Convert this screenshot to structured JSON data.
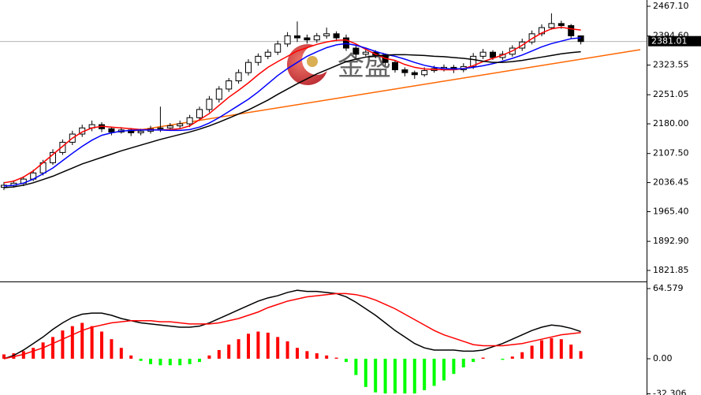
{
  "chart_data": [
    {
      "type": "candlestick",
      "watermark": "金盛",
      "ylim": [
        1794.9,
        2482.5
      ],
      "yticks": [
        {
          "value": 2467.1,
          "label": "2467.10"
        },
        {
          "value": 2394.6,
          "label": "2394.60"
        },
        2323.55,
        2251.05,
        {
          "value": 2180,
          "label": "2180.00"
        },
        {
          "value": 2107.5,
          "label": "2107.50"
        },
        2036.45,
        {
          "value": 1965.4,
          "label": "1965.40"
        },
        {
          "value": 1892.9,
          "label": "1892.90"
        },
        1821.85
      ],
      "up_color": "#ffffff",
      "down_color": "#000000",
      "outline_color": "#000000",
      "open": [
        2025,
        2030,
        2035,
        2045,
        2060,
        2085,
        2110,
        2135,
        2155,
        2170,
        2178,
        2168,
        2160,
        2165,
        2158,
        2162,
        2168,
        2170,
        2175,
        2180,
        2195,
        2215,
        2240,
        2265,
        2285,
        2305,
        2330,
        2345,
        2355,
        2375,
        2395,
        2390,
        2385,
        2395,
        2400,
        2390,
        2365,
        2350,
        2355,
        2348,
        2330,
        2312,
        2305,
        2300,
        2310,
        2315,
        2318,
        2312,
        2320,
        2345,
        2355,
        2342,
        2350,
        2365,
        2380,
        2400,
        2415,
        2425,
        2420,
        2395
      ],
      "high": [
        2038,
        2042,
        2052,
        2068,
        2092,
        2118,
        2142,
        2163,
        2178,
        2188,
        2184,
        2172,
        2172,
        2170,
        2168,
        2175,
        2222,
        2182,
        2188,
        2202,
        2222,
        2248,
        2272,
        2292,
        2313,
        2338,
        2352,
        2362,
        2383,
        2404,
        2430,
        2398,
        2402,
        2415,
        2406,
        2398,
        2372,
        2362,
        2360,
        2352,
        2336,
        2318,
        2310,
        2318,
        2322,
        2325,
        2324,
        2328,
        2353,
        2363,
        2360,
        2358,
        2372,
        2388,
        2408,
        2423,
        2450,
        2432,
        2424,
        2392
      ],
      "low": [
        2018,
        2024,
        2028,
        2040,
        2054,
        2080,
        2104,
        2128,
        2148,
        2162,
        2160,
        2152,
        2156,
        2150,
        2152,
        2156,
        2160,
        2164,
        2168,
        2172,
        2188,
        2208,
        2232,
        2258,
        2278,
        2298,
        2322,
        2338,
        2348,
        2368,
        2380,
        2376,
        2378,
        2388,
        2382,
        2358,
        2342,
        2345,
        2340,
        2322,
        2305,
        2296,
        2290,
        2295,
        2305,
        2308,
        2304,
        2306,
        2314,
        2338,
        2336,
        2336,
        2344,
        2358,
        2374,
        2394,
        2410,
        2412,
        2388,
        2374
      ],
      "close": [
        2030,
        2035,
        2045,
        2060,
        2085,
        2110,
        2135,
        2155,
        2170,
        2178,
        2168,
        2160,
        2165,
        2158,
        2162,
        2168,
        2170,
        2175,
        2180,
        2195,
        2215,
        2240,
        2265,
        2285,
        2305,
        2330,
        2345,
        2355,
        2375,
        2395,
        2390,
        2385,
        2395,
        2400,
        2390,
        2365,
        2350,
        2355,
        2348,
        2330,
        2312,
        2305,
        2300,
        2310,
        2315,
        2318,
        2312,
        2320,
        2345,
        2355,
        2342,
        2350,
        2365,
        2380,
        2400,
        2415,
        2425,
        2420,
        2395,
        2381.01
      ],
      "series": [
        {
          "color": "#ff0000",
          "values": [
            2036,
            2040,
            2050,
            2065,
            2085,
            2105,
            2125,
            2145,
            2160,
            2170,
            2174,
            2172,
            2170,
            2168,
            2166,
            2166,
            2165,
            2166,
            2168,
            2175,
            2190,
            2205,
            2225,
            2245,
            2262,
            2280,
            2300,
            2318,
            2332,
            2345,
            2358,
            2366,
            2374,
            2380,
            2384,
            2385,
            2375,
            2362,
            2350,
            2340,
            2335,
            2325,
            2318,
            2314,
            2313,
            2312,
            2312,
            2315,
            2322,
            2332,
            2340,
            2348,
            2358,
            2372,
            2388,
            2402,
            2412,
            2416,
            2412,
            2409
          ]
        },
        {
          "color": "#0000ff",
          "values": [
            2028,
            2030,
            2035,
            2045,
            2058,
            2072,
            2090,
            2108,
            2125,
            2140,
            2152,
            2158,
            2162,
            2164,
            2165,
            2165,
            2165,
            2164,
            2164,
            2166,
            2172,
            2182,
            2195,
            2210,
            2225,
            2240,
            2258,
            2278,
            2298,
            2315,
            2330,
            2345,
            2356,
            2366,
            2373,
            2376,
            2372,
            2365,
            2357,
            2350,
            2345,
            2338,
            2330,
            2323,
            2318,
            2315,
            2314,
            2315,
            2318,
            2322,
            2327,
            2333,
            2340,
            2348,
            2358,
            2368,
            2376,
            2382,
            2388,
            2390
          ]
        },
        {
          "color": "#000000",
          "values": [
            2024,
            2026,
            2030,
            2036,
            2044,
            2052,
            2062,
            2072,
            2082,
            2090,
            2098,
            2106,
            2114,
            2121,
            2128,
            2135,
            2142,
            2148,
            2154,
            2160,
            2167,
            2175,
            2184,
            2194,
            2204,
            2214,
            2226,
            2238,
            2252,
            2265,
            2278,
            2290,
            2302,
            2312,
            2322,
            2332,
            2338,
            2343,
            2346,
            2348,
            2349,
            2349,
            2348,
            2347,
            2345,
            2344,
            2342,
            2340,
            2337,
            2333,
            2330,
            2330,
            2332,
            2335,
            2339,
            2343,
            2347,
            2351,
            2354,
            2356
          ]
        }
      ]
    },
    {
      "type": "macd",
      "ylim": [
        -33.4,
        70.4
      ],
      "yticks": [
        64.579,
        {
          "value": 0,
          "label": "0.00"
        },
        -32.306
      ],
      "positive_color": "#ff0000",
      "negative_color": "#00ff00",
      "values": [
        4,
        5,
        7,
        10,
        15,
        20,
        26,
        30,
        33,
        30,
        25,
        18,
        10,
        3,
        -2,
        -5,
        -6,
        -6,
        -6,
        -5,
        -3,
        3,
        8,
        13,
        18,
        23,
        25,
        24,
        20,
        16,
        10,
        7,
        5,
        3,
        1,
        -3,
        -15,
        -26,
        -31,
        -32,
        -32,
        -32,
        -32,
        -29,
        -25,
        -20,
        -14,
        -8,
        -3,
        1,
        0,
        -1,
        2,
        6,
        12,
        17,
        19,
        18,
        13,
        7
      ],
      "series": [
        {
          "color": "#000000",
          "values": [
            0,
            3,
            8,
            14,
            20,
            27,
            33,
            38,
            41,
            42,
            42,
            40,
            37,
            35,
            33,
            32,
            31,
            30,
            29,
            29,
            30,
            33,
            37,
            41,
            45,
            49,
            53,
            56,
            58,
            61,
            63,
            62,
            62,
            61,
            60,
            57,
            52,
            46,
            40,
            33,
            26,
            20,
            14,
            10,
            8,
            8,
            8,
            7,
            7,
            8,
            11,
            14,
            18,
            22,
            26,
            29,
            31,
            30,
            28,
            25
          ]
        },
        {
          "color": "#ff0000",
          "values": [
            0,
            2,
            4,
            7,
            10,
            14,
            18,
            22,
            26,
            29,
            31,
            33,
            34,
            35,
            35,
            35,
            34,
            34,
            33,
            32,
            32,
            32,
            33,
            35,
            37,
            40,
            43,
            47,
            50,
            53,
            55,
            57,
            58,
            59,
            60,
            60,
            59,
            57,
            54,
            50,
            46,
            41,
            36,
            31,
            26,
            22,
            19,
            16,
            13,
            12,
            12,
            12,
            13,
            14,
            16,
            18,
            20,
            22,
            23,
            24
          ]
        }
      ]
    }
  ]
}
